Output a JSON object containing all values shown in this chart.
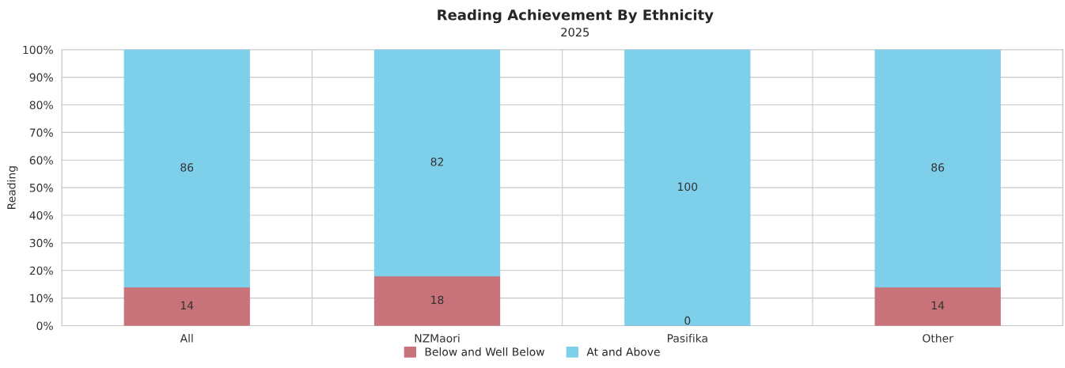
{
  "chart_data": {
    "type": "bar",
    "title": "Reading Achievement By Ethnicity",
    "subtitle": "2025",
    "ylabel": "Reading",
    "categories": [
      "All",
      "NZMaori",
      "Pasifika",
      "Other"
    ],
    "series": [
      {
        "name": "Below and Well Below",
        "color": "#c8737a",
        "values": [
          14,
          18,
          0,
          14
        ]
      },
      {
        "name": "At and Above",
        "color": "#7ecfea",
        "values": [
          86,
          82,
          100,
          86
        ]
      }
    ],
    "stacked": true,
    "data_labels": true,
    "grid": true,
    "legend": "bottom",
    "ylim": [
      0,
      100
    ],
    "yticks": [
      {
        "value": 0,
        "label": "0%"
      },
      {
        "value": 10,
        "label": "10%"
      },
      {
        "value": 20,
        "label": "20%"
      },
      {
        "value": 30,
        "label": "30%"
      },
      {
        "value": 40,
        "label": "40%"
      },
      {
        "value": 50,
        "label": "50%"
      },
      {
        "value": 60,
        "label": "60%"
      },
      {
        "value": 70,
        "label": "70%"
      },
      {
        "value": 80,
        "label": "80%"
      },
      {
        "value": 90,
        "label": "90%"
      },
      {
        "value": 100,
        "label": "100%"
      }
    ]
  }
}
